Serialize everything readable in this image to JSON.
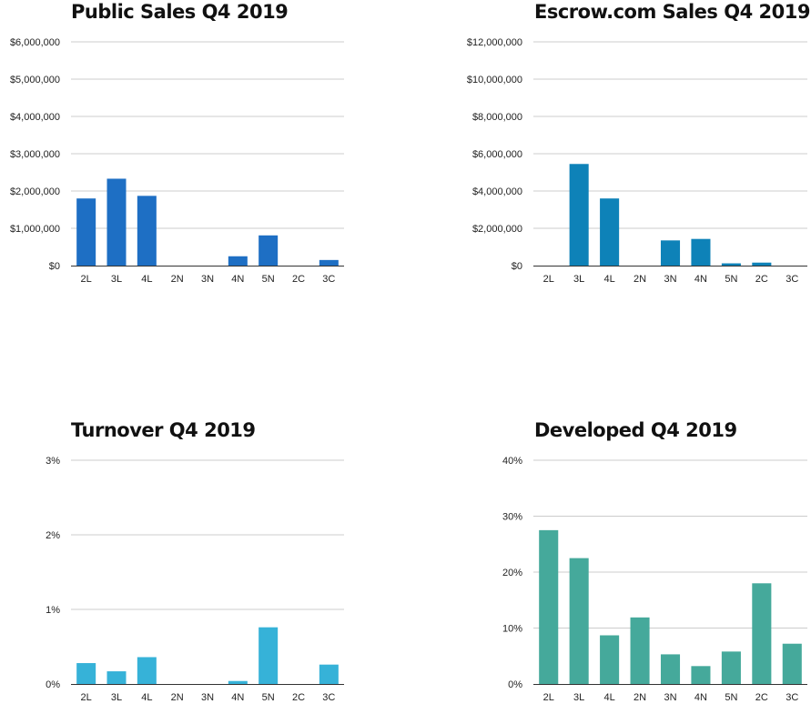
{
  "chart_data": [
    {
      "type": "bar",
      "title": "Public Sales Q4 2019",
      "categories": [
        "2L",
        "3L",
        "4L",
        "2N",
        "3N",
        "4N",
        "5N",
        "2C",
        "3C"
      ],
      "values": [
        1800000,
        2330000,
        1870000,
        0,
        0,
        250000,
        810000,
        0,
        150000
      ],
      "ylim": [
        0,
        6000000
      ],
      "yticks": [
        0,
        1000000,
        2000000,
        3000000,
        4000000,
        5000000,
        6000000
      ],
      "yticklabels": [
        "$0",
        "$1,000,000",
        "$2,000,000",
        "$3,000,000",
        "$4,000,000",
        "$5,000,000",
        "$6,000,000"
      ],
      "color": "#1e6fc4",
      "grid": true,
      "legend": "none"
    },
    {
      "type": "bar",
      "title": "Escrow.com Sales Q4 2019",
      "categories": [
        "2L",
        "3L",
        "4L",
        "2N",
        "3N",
        "4N",
        "5N",
        "2C",
        "3C"
      ],
      "values": [
        0,
        5450000,
        3600000,
        0,
        1350000,
        1430000,
        120000,
        160000,
        0
      ],
      "ylim": [
        0,
        12000000
      ],
      "yticks": [
        0,
        2000000,
        4000000,
        6000000,
        8000000,
        10000000,
        12000000
      ],
      "yticklabels": [
        "$0",
        "$2,000,000",
        "$4,000,000",
        "$6,000,000",
        "$8,000,000",
        "$10,000,000",
        "$12,000,000"
      ],
      "color": "#0e82b8",
      "grid": true,
      "legend": "none"
    },
    {
      "type": "bar",
      "title": "Turnover Q4 2019",
      "categories": [
        "2L",
        "3L",
        "4L",
        "2N",
        "3N",
        "4N",
        "5N",
        "2C",
        "3C"
      ],
      "values": [
        0.28,
        0.17,
        0.36,
        0,
        0,
        0.04,
        0.76,
        0,
        0.26
      ],
      "ylim": [
        0,
        3
      ],
      "yticks": [
        0,
        1,
        2,
        3
      ],
      "yticklabels": [
        "0%",
        "1%",
        "2%",
        "3%"
      ],
      "color": "#36b2d8",
      "grid": true,
      "legend": "none"
    },
    {
      "type": "bar",
      "title": "Developed Q4 2019",
      "categories": [
        "2L",
        "3L",
        "4L",
        "2N",
        "3N",
        "4N",
        "5N",
        "2C",
        "3C"
      ],
      "values": [
        27.5,
        22.5,
        8.7,
        11.9,
        5.3,
        3.2,
        5.8,
        18.0,
        7.2
      ],
      "ylim": [
        0,
        40
      ],
      "yticks": [
        0,
        10,
        20,
        30,
        40
      ],
      "yticklabels": [
        "0%",
        "10%",
        "20%",
        "30%",
        "40%"
      ],
      "color": "#45a99b",
      "grid": true,
      "legend": "none"
    }
  ]
}
